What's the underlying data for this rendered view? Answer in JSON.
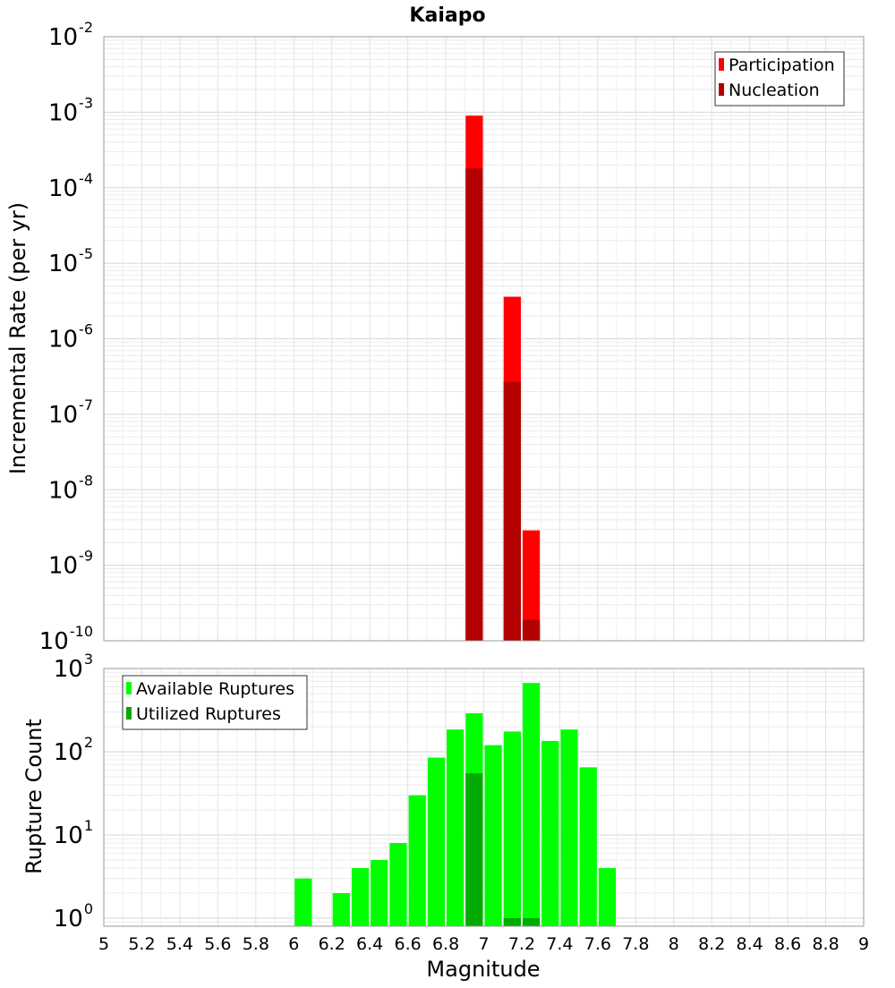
{
  "chart_data": [
    {
      "type": "bar",
      "title": "Kaiapo",
      "xlabel": "",
      "ylabel": "Incremental Rate (per yr)",
      "yscale": "log",
      "ylim": [
        1e-10,
        0.01
      ],
      "xlim": [
        5,
        9
      ],
      "bin_width": 0.1,
      "grid": true,
      "legend": "top-right",
      "y_ticks": [
        {
          "base": "10",
          "exp": "-10",
          "value": 1e-10
        },
        {
          "base": "10",
          "exp": "-9",
          "value": 1e-09
        },
        {
          "base": "10",
          "exp": "-8",
          "value": 1e-08
        },
        {
          "base": "10",
          "exp": "-7",
          "value": 1e-07
        },
        {
          "base": "10",
          "exp": "-6",
          "value": 1e-06
        },
        {
          "base": "10",
          "exp": "-5",
          "value": 1e-05
        },
        {
          "base": "10",
          "exp": "-4",
          "value": 0.0001
        },
        {
          "base": "10",
          "exp": "-3",
          "value": 0.001
        },
        {
          "base": "10",
          "exp": "-2",
          "value": 0.01
        }
      ],
      "series": [
        {
          "name": "Participation",
          "color": "#ff0000",
          "x": [
            6.95,
            7.15,
            7.25
          ],
          "values": [
            0.0009,
            3.6e-06,
            2.9e-09
          ]
        },
        {
          "name": "Nucleation",
          "color": "#b30000",
          "x": [
            6.95,
            7.15,
            7.25
          ],
          "values": [
            0.00018,
            2.7e-07,
            1.9e-10
          ]
        }
      ]
    },
    {
      "type": "bar",
      "title": "",
      "xlabel": "Magnitude",
      "ylabel": "Rupture Count",
      "yscale": "log",
      "ylim": [
        0.8,
        1000
      ],
      "xlim": [
        5,
        9
      ],
      "bin_width": 0.1,
      "grid": true,
      "legend": "top-left",
      "y_ticks": [
        {
          "base": "10",
          "exp": "0",
          "value": 1
        },
        {
          "base": "10",
          "exp": "1",
          "value": 10
        },
        {
          "base": "10",
          "exp": "2",
          "value": 100
        },
        {
          "base": "10",
          "exp": "3",
          "value": 1000
        }
      ],
      "x_ticks": [
        "5",
        "5.2",
        "5.4",
        "5.6",
        "5.8",
        "6",
        "6.2",
        "6.4",
        "6.6",
        "6.8",
        "7",
        "7.2",
        "7.4",
        "7.6",
        "7.8",
        "8",
        "8.2",
        "8.4",
        "8.6",
        "8.8",
        "9"
      ],
      "series": [
        {
          "name": "Available Ruptures",
          "color": "#00ff00",
          "x": [
            6.05,
            6.25,
            6.35,
            6.45,
            6.55,
            6.65,
            6.75,
            6.85,
            6.95,
            7.05,
            7.15,
            7.25,
            7.35,
            7.45,
            7.55,
            7.65
          ],
          "values": [
            3,
            2,
            4,
            5,
            8,
            30,
            85,
            185,
            290,
            120,
            175,
            670,
            135,
            185,
            65,
            4
          ]
        },
        {
          "name": "Utilized Ruptures",
          "color": "#00aa00",
          "x": [
            6.95,
            7.15,
            7.25
          ],
          "values": [
            55,
            1,
            1
          ]
        }
      ]
    }
  ]
}
